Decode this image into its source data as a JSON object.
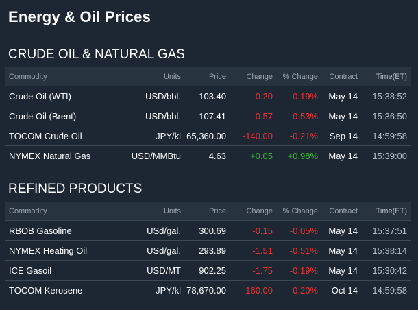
{
  "page": {
    "title": "Energy & Oil Prices"
  },
  "columns": [
    "Commodity",
    "Units",
    "Price",
    "Change",
    "% Change",
    "Contract",
    "Time(ET)"
  ],
  "sections": [
    {
      "title": "CRUDE OIL & NATURAL GAS",
      "rows": [
        {
          "commodity": "Crude Oil (WTI)",
          "units": "USD/bbl.",
          "price": "103.40",
          "change": "-0.20",
          "pct_change": "-0.19%",
          "contract": "May 14",
          "time": "15:38:52"
        },
        {
          "commodity": "Crude Oil (Brent)",
          "units": "USD/bbl.",
          "price": "107.41",
          "change": "-0.57",
          "pct_change": "-0.53%",
          "contract": "May 14",
          "time": "15:36:50"
        },
        {
          "commodity": "TOCOM Crude Oil",
          "units": "JPY/kl",
          "price": "65,360.00",
          "change": "-140.00",
          "pct_change": "-0.21%",
          "contract": "Sep 14",
          "time": "14:59:58"
        },
        {
          "commodity": "NYMEX Natural Gas",
          "units": "USD/MMBtu",
          "price": "4.63",
          "change": "+0.05",
          "pct_change": "+0.98%",
          "contract": "May 14",
          "time": "15:39:00"
        }
      ]
    },
    {
      "title": "REFINED PRODUCTS",
      "rows": [
        {
          "commodity": "RBOB Gasoline",
          "units": "USd/gal.",
          "price": "300.69",
          "change": "-0.15",
          "pct_change": "-0.05%",
          "contract": "May 14",
          "time": "15:37:51"
        },
        {
          "commodity": "NYMEX Heating Oil",
          "units": "USd/gal.",
          "price": "293.89",
          "change": "-1.51",
          "pct_change": "-0.51%",
          "contract": "May 14",
          "time": "15:38:14"
        },
        {
          "commodity": "ICE Gasoil",
          "units": "USD/MT",
          "price": "902.25",
          "change": "-1.75",
          "pct_change": "-0.19%",
          "contract": "May 14",
          "time": "15:30:42"
        },
        {
          "commodity": "TOCOM Kerosene",
          "units": "JPY/kl",
          "price": "78,670.00",
          "change": "-160.00",
          "pct_change": "-0.20%",
          "contract": "Oct 14",
          "time": "14:59:58"
        }
      ]
    }
  ],
  "colors": {
    "background": "#1d2733",
    "header_bg": "#283340",
    "negative": "#f0302d",
    "positive": "#35c02e"
  }
}
